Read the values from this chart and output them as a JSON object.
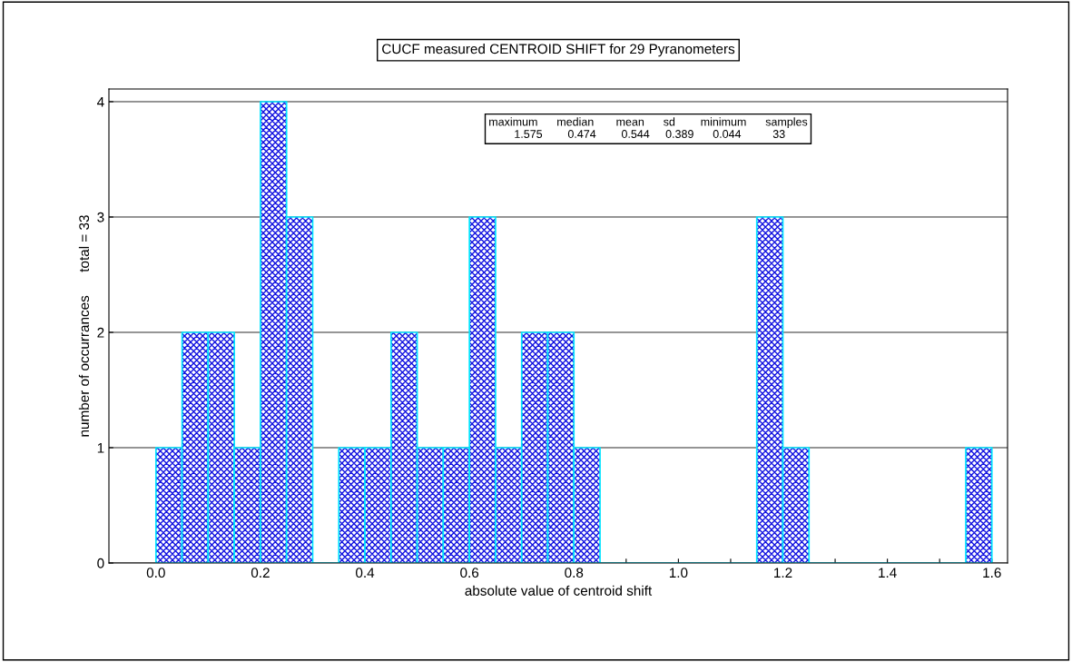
{
  "chart_data": {
    "type": "histogram",
    "title": "CUCF measured CENTROID SHIFT for 29 Pyranometers",
    "xlabel": "absolute value of centroid shift",
    "ylabel": "number of occurrances      total = 33",
    "bins": [
      0.0,
      0.05,
      0.1,
      0.15,
      0.2,
      0.25,
      0.3,
      0.35,
      0.4,
      0.45,
      0.5,
      0.55,
      0.6,
      0.65,
      0.7,
      0.75,
      0.8,
      0.85,
      0.9,
      0.95,
      1.0,
      1.05,
      1.1,
      1.15,
      1.2,
      1.25,
      1.3,
      1.35,
      1.4,
      1.45,
      1.5,
      1.55,
      1.6
    ],
    "values": [
      1,
      2,
      2,
      1,
      4,
      3,
      0,
      1,
      1,
      2,
      1,
      1,
      3,
      1,
      2,
      2,
      1,
      0,
      0,
      0,
      0,
      0,
      0,
      3,
      1,
      0,
      0,
      0,
      0,
      0,
      0,
      1
    ],
    "color": "#00e5ff",
    "xlim": [
      -0.09,
      1.63
    ],
    "xticks": [
      {
        "value": 0.0,
        "label": "0.0"
      },
      {
        "value": 0.1,
        "label": null
      },
      {
        "value": 0.2,
        "label": "0.2"
      },
      {
        "value": 0.3,
        "label": null
      },
      {
        "value": 0.4,
        "label": "0.4"
      },
      {
        "value": 0.5,
        "label": null
      },
      {
        "value": 0.6,
        "label": "0.6"
      },
      {
        "value": 0.7,
        "label": null
      },
      {
        "value": 0.8,
        "label": "0.8"
      },
      {
        "value": 0.9,
        "label": null
      },
      {
        "value": 1.0,
        "label": "1.0"
      },
      {
        "value": 1.1,
        "label": null
      },
      {
        "value": 1.2,
        "label": "1.2"
      },
      {
        "value": 1.3,
        "label": null
      },
      {
        "value": 1.4,
        "label": "1.4"
      },
      {
        "value": 1.5,
        "label": null
      },
      {
        "value": 1.6,
        "label": "1.6"
      }
    ],
    "ylim": [
      0,
      4.11
    ],
    "yticks": [
      0,
      1,
      2,
      3,
      4
    ],
    "grid": "y",
    "legend": false,
    "annotations": [
      "maximum      median       mean      sd        minimum      samples\n 1.575        0.474        0.544     0.389      0.044          33"
    ]
  }
}
